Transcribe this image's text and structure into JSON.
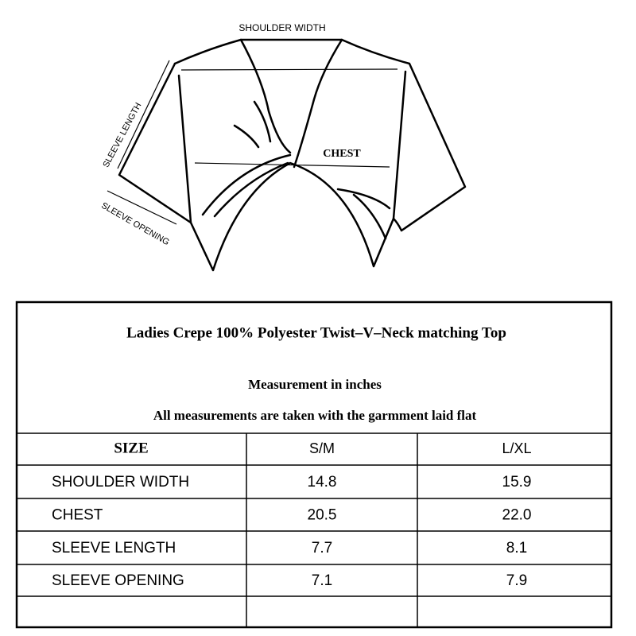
{
  "diagram": {
    "labels": {
      "shoulder_width": "SHOULDER WIDTH",
      "chest": "CHEST",
      "sleeve_length": "SLEEVE LENGTH",
      "sleeve_opening": "SLEEVE OPENING"
    }
  },
  "table": {
    "title": "Ladies Crepe 100% Polyester Twist–V–Neck matching Top",
    "subtitle": "Measurement in inches",
    "note": "All measurements are taken with the garmment laid flat",
    "header": [
      "SIZE",
      "S/M",
      "L/XL"
    ],
    "rows": [
      [
        "SHOULDER WIDTH",
        "14.8",
        "15.9"
      ],
      [
        "CHEST",
        "20.5",
        "22.0"
      ],
      [
        "SLEEVE LENGTH",
        "7.7",
        "8.1"
      ],
      [
        "SLEEVE OPENING",
        "7.1",
        "7.9"
      ]
    ]
  }
}
